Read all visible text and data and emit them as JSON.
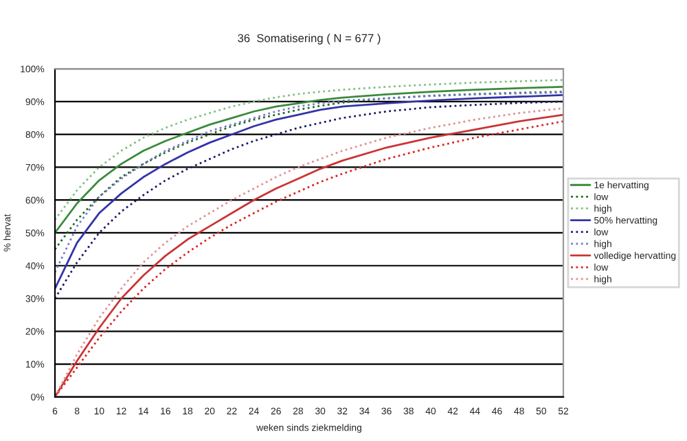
{
  "chart_data": {
    "type": "line",
    "title": "36  Somatisering ( N = 677 )",
    "xlabel": "weken sinds ziekmelding",
    "ylabel": "% hervat",
    "x": [
      6,
      8,
      10,
      12,
      14,
      16,
      18,
      20,
      22,
      24,
      26,
      28,
      30,
      32,
      36,
      40,
      44,
      48,
      52
    ],
    "series": [
      {
        "name": "1e hervatting",
        "color": "#3a8a3a",
        "line_style": "solid",
        "values": [
          50,
          59,
          66,
          71,
          75,
          78,
          80.5,
          83,
          85,
          87,
          88.5,
          89.5,
          90.5,
          91.2,
          92.2,
          93,
          93.6,
          94.1,
          94.5
        ]
      },
      {
        "name": "low",
        "color": "#1a6b1a",
        "line_style": "dotted",
        "values": [
          45,
          54,
          61,
          67,
          71,
          74.5,
          77.5,
          80,
          82.5,
          84.5,
          86,
          87.5,
          88.7,
          89.7,
          91,
          91.8,
          92.3,
          92.7,
          93
        ]
      },
      {
        "name": "high",
        "color": "#80c080",
        "line_style": "dotted",
        "values": [
          54,
          63,
          70,
          75,
          79,
          82,
          84.5,
          86.5,
          88.5,
          90,
          91.3,
          92.3,
          93,
          93.6,
          94.5,
          95.2,
          95.8,
          96.2,
          96.6
        ]
      },
      {
        "name": "50% hervatting",
        "color": "#3333aa",
        "line_style": "solid",
        "values": [
          33,
          47,
          56,
          62,
          67,
          71,
          74.5,
          77.5,
          80,
          82.5,
          84.5,
          86,
          87.5,
          88.5,
          89.5,
          90.3,
          91,
          91.5,
          92
        ]
      },
      {
        "name": "low",
        "color": "#1a1a66",
        "line_style": "dotted",
        "values": [
          30,
          41,
          50,
          56.5,
          61.5,
          66,
          69.5,
          72.5,
          75.5,
          78,
          80,
          82,
          83.5,
          85,
          87,
          88.3,
          89,
          89.6,
          90
        ]
      },
      {
        "name": "high",
        "color": "#7777cc",
        "line_style": "dotted",
        "values": [
          38,
          52,
          61,
          66.5,
          71,
          75,
          78,
          81,
          83,
          85,
          87,
          88.5,
          89.5,
          90.3,
          91,
          91.7,
          92.2,
          92.5,
          92.8
        ]
      },
      {
        "name": "volledige hervatting",
        "color": "#cc3333",
        "line_style": "solid",
        "values": [
          0,
          11,
          21,
          30,
          37,
          43,
          48,
          52,
          56,
          60,
          63.5,
          66.5,
          69.5,
          72,
          76,
          79,
          81.5,
          84,
          86
        ]
      },
      {
        "name": "low",
        "color": "#dd2222",
        "line_style": "dotted",
        "values": [
          0,
          9,
          18,
          26,
          33,
          39,
          44,
          48.5,
          52.5,
          56,
          59.5,
          62.5,
          65.5,
          68,
          72.5,
          76,
          79,
          81.5,
          84
        ]
      },
      {
        "name": "high",
        "color": "#e09090",
        "line_style": "dotted",
        "values": [
          0,
          13,
          24,
          33,
          41,
          47,
          52,
          56,
          60,
          63.5,
          67,
          70,
          72.5,
          75,
          79,
          82,
          84.5,
          86.5,
          88
        ]
      }
    ],
    "xlim": [
      6,
      52
    ],
    "xticks": [
      6,
      8,
      10,
      12,
      14,
      16,
      18,
      20,
      22,
      24,
      26,
      28,
      30,
      32,
      34,
      36,
      38,
      40,
      42,
      44,
      46,
      48,
      50,
      52
    ],
    "ylim": [
      0,
      100
    ],
    "yticks": [
      {
        "value": 0,
        "label": "0%"
      },
      {
        "value": 10,
        "label": "10%"
      },
      {
        "value": 20,
        "label": "20%"
      },
      {
        "value": 30,
        "label": "30%"
      },
      {
        "value": 40,
        "label": "40%"
      },
      {
        "value": 50,
        "label": "50%"
      },
      {
        "value": 60,
        "label": "60%"
      },
      {
        "value": 70,
        "label": "70%"
      },
      {
        "value": 80,
        "label": "80%"
      },
      {
        "value": 90,
        "label": "90%"
      },
      {
        "value": 100,
        "label": "100%"
      }
    ],
    "grid": "y",
    "legend": "right",
    "marker": "none"
  }
}
